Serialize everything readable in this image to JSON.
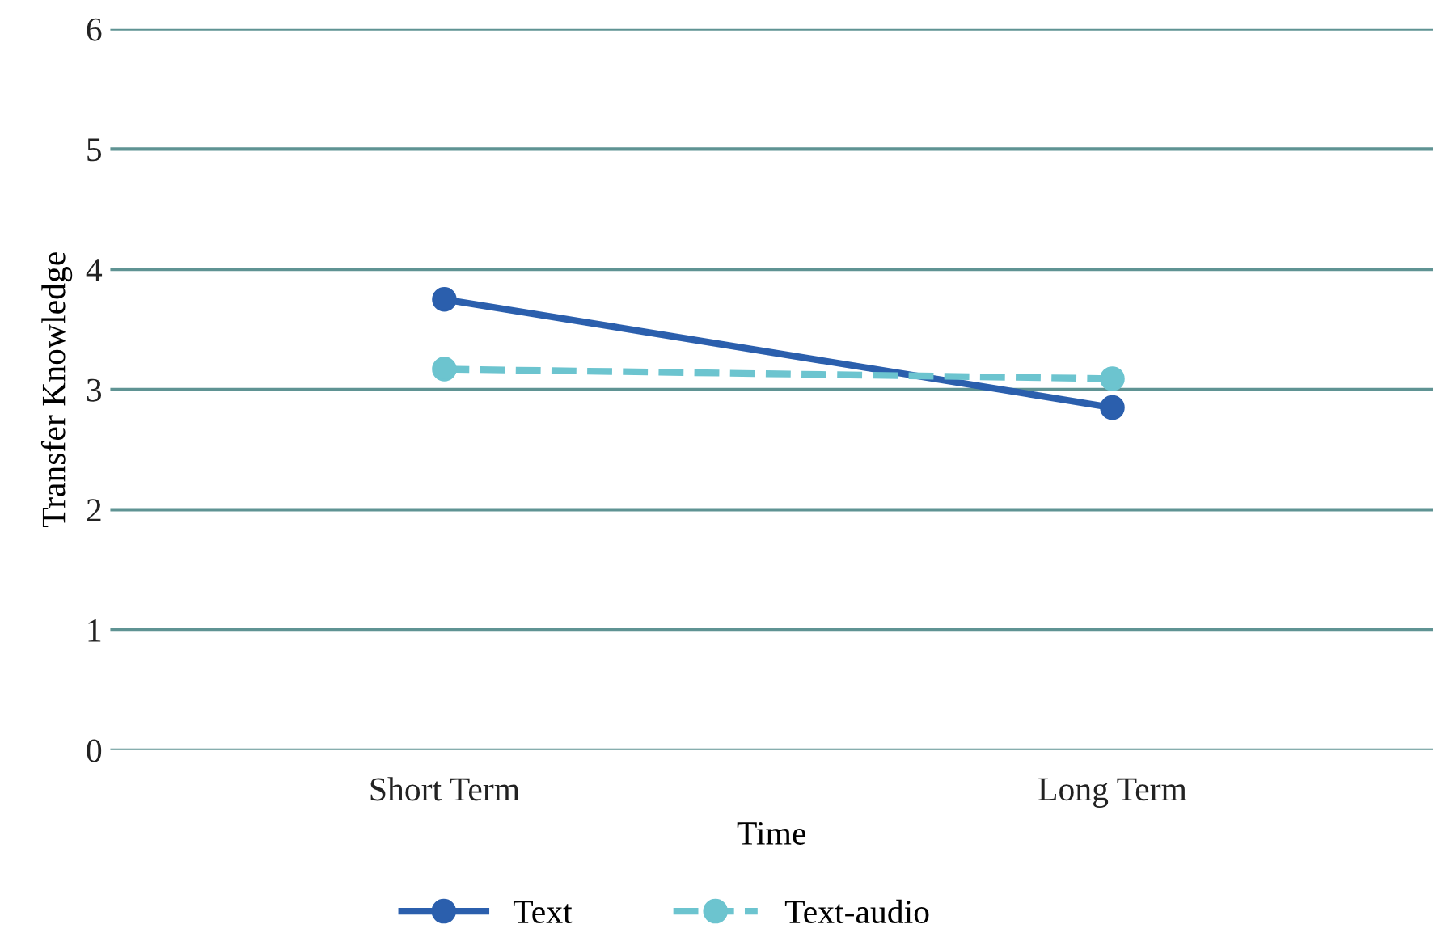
{
  "chart_data": {
    "type": "line",
    "xlabel": "Time",
    "ylabel": "Transfer Knowledge",
    "categories": [
      "Short Term",
      "Long Term"
    ],
    "series": [
      {
        "name": "Text",
        "color": "#2b5fad",
        "values": [
          3.75,
          2.85
        ],
        "line_style": "solid"
      },
      {
        "name": "Text-audio",
        "color": "#6cc4cf",
        "values": [
          3.17,
          3.09
        ],
        "line_style": "dashed"
      }
    ],
    "ylim": [
      0,
      6
    ],
    "yticks": [
      0,
      1,
      2,
      3,
      4,
      5,
      6
    ],
    "grid": "y",
    "legend": "bottom",
    "marker": "circle"
  }
}
